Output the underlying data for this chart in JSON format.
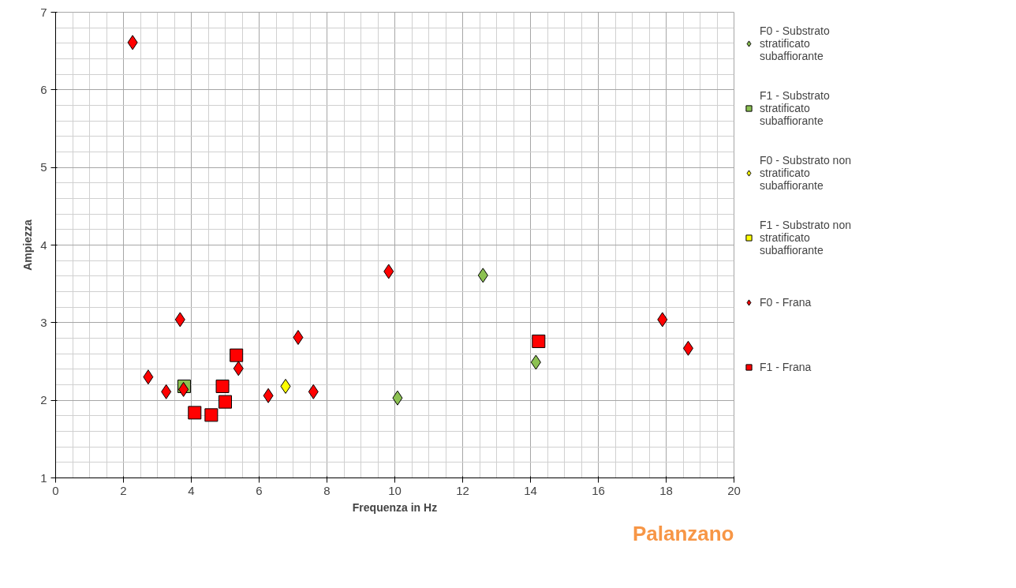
{
  "chart_data": {
    "type": "scatter",
    "xlabel": "Frequenza in Hz",
    "ylabel": "Ampiezza",
    "xlim": [
      0,
      20
    ],
    "ylim": [
      1,
      7
    ],
    "xticks": [
      0,
      2,
      4,
      6,
      8,
      10,
      12,
      14,
      16,
      18,
      20
    ],
    "yticks": [
      1,
      2,
      3,
      4,
      5,
      6,
      7
    ],
    "grid": true,
    "legend": "right",
    "annotations": [
      "Palanzano"
    ],
    "series": [
      {
        "name": "F0 - Substrato stratificato subaffiorante",
        "color": "#8cc152",
        "marker": "diamond",
        "x": [
          10.08,
          12.6,
          14.16
        ],
        "values": [
          2.03,
          3.61,
          2.49
        ]
      },
      {
        "name": "F1 - Substrato stratificato subaffiorante",
        "color": "#8cc152",
        "marker": "square",
        "x": [
          3.79
        ],
        "values": [
          2.18
        ]
      },
      {
        "name": "F0 - Substrato non stratificato subaffiorante",
        "color": "#ffff00",
        "marker": "diamond",
        "x": [
          6.78
        ],
        "values": [
          2.18
        ]
      },
      {
        "name": "F1 - Substrato non stratificato subaffiorante",
        "color": "#ffff00",
        "marker": "square"
      },
      {
        "name": "F0 - Frana",
        "color": "#ff0000",
        "marker": "diamond",
        "x": [
          2.27,
          2.73,
          3.26,
          3.67,
          3.77,
          5.39,
          6.27,
          7.15,
          7.6,
          9.82,
          17.89,
          18.65
        ],
        "values": [
          6.61,
          2.3,
          2.11,
          3.04,
          2.14,
          2.41,
          2.06,
          2.81,
          2.11,
          3.66,
          3.04,
          2.67
        ]
      },
      {
        "name": "F1 - Frana",
        "color": "#ff0000",
        "marker": "square",
        "x": [
          4.1,
          4.59,
          4.92,
          5.0,
          5.33,
          14.24
        ],
        "values": [
          1.84,
          1.81,
          2.18,
          1.98,
          2.58,
          2.76
        ]
      }
    ]
  }
}
